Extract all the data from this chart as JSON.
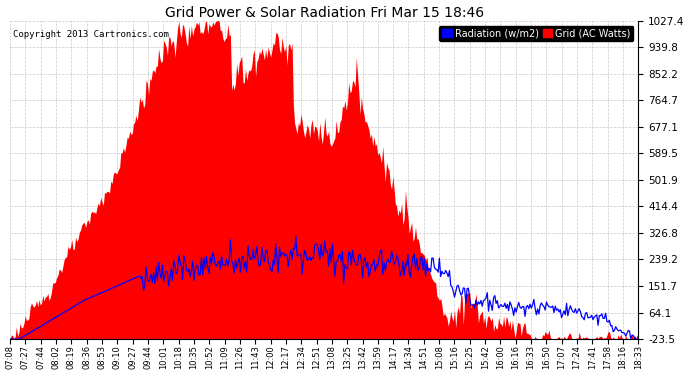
{
  "title": "Grid Power & Solar Radiation Fri Mar 15 18:46",
  "copyright": "Copyright 2013 Cartronics.com",
  "legend_labels": [
    "Radiation (w/m2)",
    "Grid (AC Watts)"
  ],
  "legend_colors": [
    "blue",
    "red"
  ],
  "ylabel_right_ticks": [
    1027.4,
    939.8,
    852.2,
    764.7,
    677.1,
    589.5,
    501.9,
    414.4,
    326.8,
    239.2,
    151.7,
    64.1,
    -23.5
  ],
  "ymin": -23.5,
  "ymax": 1027.4,
  "background_color": "#ffffff",
  "plot_bg_color": "#ffffff",
  "grid_color": "#bbbbbb",
  "fill_color": "red",
  "line_color": "blue",
  "x_tick_labels": [
    "07:08",
    "07:27",
    "07:44",
    "08:02",
    "08:19",
    "08:36",
    "08:53",
    "09:10",
    "09:27",
    "09:44",
    "10:01",
    "10:18",
    "10:35",
    "10:52",
    "11:09",
    "11:26",
    "11:43",
    "12:00",
    "12:17",
    "12:34",
    "12:51",
    "13:08",
    "13:25",
    "13:42",
    "13:59",
    "14:17",
    "14:34",
    "14:51",
    "15:08",
    "15:16",
    "15:25",
    "15:42",
    "16:00",
    "16:16",
    "16:33",
    "16:50",
    "17:07",
    "17:24",
    "17:41",
    "17:58",
    "18:16",
    "18:33"
  ]
}
